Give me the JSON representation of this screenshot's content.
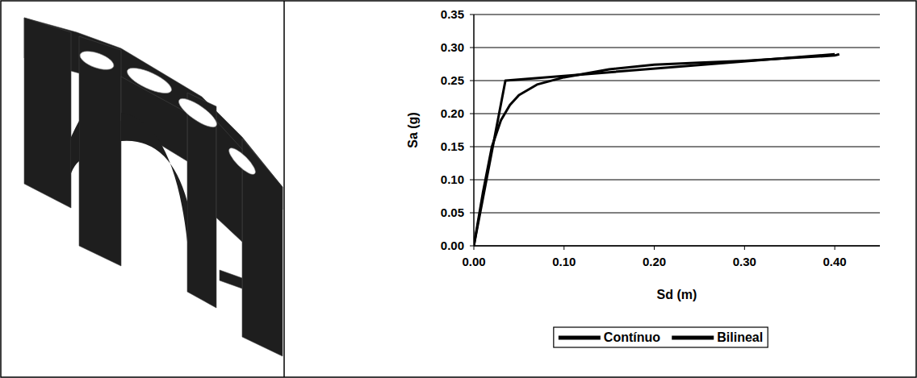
{
  "chart_data": {
    "type": "line",
    "x_label": "Sd (m)",
    "y_label": "Sa (g)",
    "xlim": [
      0,
      0.45
    ],
    "ylim": [
      0,
      0.35
    ],
    "xticks": [
      {
        "value": 0,
        "label": "0.00"
      },
      {
        "value": 0.1,
        "label": "0.10"
      },
      {
        "value": 0.2,
        "label": "0.20"
      },
      {
        "value": 0.3,
        "label": "0.30"
      },
      {
        "value": 0.4,
        "label": "0.40"
      }
    ],
    "yticks": [
      {
        "value": 0,
        "label": "0.00"
      },
      {
        "value": 0.05,
        "label": "0.05"
      },
      {
        "value": 0.1,
        "label": "0.10"
      },
      {
        "value": 0.15,
        "label": "0.15"
      },
      {
        "value": 0.2,
        "label": "0.20"
      },
      {
        "value": 0.25,
        "label": "0.25"
      },
      {
        "value": 0.3,
        "label": "0.30"
      },
      {
        "value": 0.35,
        "label": "0.35"
      }
    ],
    "grid": true,
    "legend": "bottom",
    "series": [
      {
        "name": "Contínuo",
        "color": "#000000",
        "line_style": "solid",
        "x": [
          0,
          0.01,
          0.02,
          0.03,
          0.04,
          0.05,
          0.07,
          0.1,
          0.15,
          0.2,
          0.25,
          0.3,
          0.35,
          0.4,
          0.405
        ],
        "values": [
          0,
          0.08,
          0.15,
          0.19,
          0.213,
          0.228,
          0.244,
          0.255,
          0.267,
          0.274,
          0.277,
          0.28,
          0.284,
          0.288,
          0.29
        ]
      },
      {
        "name": "Bilineal",
        "color": "#000000",
        "line_style": "solid",
        "x": [
          0,
          0.035,
          0.4
        ],
        "values": [
          0,
          0.25,
          0.29
        ]
      }
    ]
  }
}
